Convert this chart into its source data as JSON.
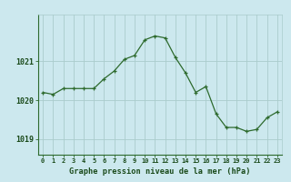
{
  "hours": [
    0,
    1,
    2,
    3,
    4,
    5,
    6,
    7,
    8,
    9,
    10,
    11,
    12,
    13,
    14,
    15,
    16,
    17,
    18,
    19,
    20,
    21,
    22,
    23
  ],
  "pressure": [
    1020.2,
    1020.15,
    1020.3,
    1020.3,
    1020.3,
    1020.3,
    1020.55,
    1020.75,
    1021.05,
    1021.15,
    1021.55,
    1021.65,
    1021.6,
    1021.1,
    1020.7,
    1020.2,
    1020.35,
    1019.65,
    1019.3,
    1019.3,
    1019.2,
    1019.25,
    1019.55,
    1019.7
  ],
  "line_color": "#2d6a2d",
  "marker": "+",
  "bg_color": "#cce8ee",
  "grid_color": "#aacccc",
  "xlabel": "Graphe pression niveau de la mer (hPa)",
  "xlabel_color": "#1a4a1a",
  "tick_color": "#1a4a1a",
  "yticks": [
    1019,
    1020,
    1021
  ],
  "ylim": [
    1018.6,
    1022.2
  ],
  "xlim": [
    -0.5,
    23.5
  ],
  "figsize": [
    3.2,
    2.0
  ],
  "dpi": 100
}
